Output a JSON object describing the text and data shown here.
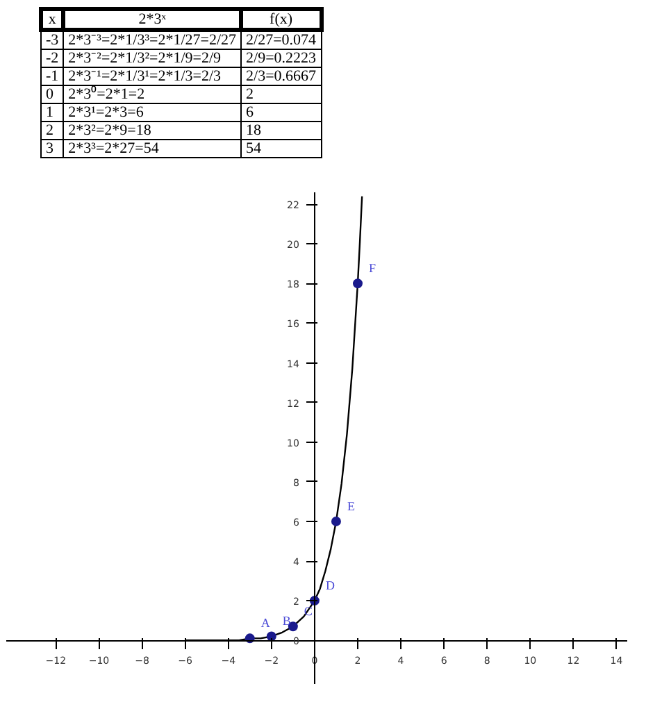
{
  "chart_data": {
    "type": "scatter",
    "xlim": [
      -14.3,
      14.5
    ],
    "ylim": [
      -2.2,
      22.6
    ],
    "xticks": [
      -12,
      -10,
      -8,
      -6,
      -4,
      -2,
      0,
      2,
      4,
      6,
      8,
      10,
      12,
      14
    ],
    "yticks": [
      0,
      2,
      4,
      6,
      8,
      10,
      12,
      14,
      16,
      18,
      20,
      22
    ],
    "grid": false,
    "series": [
      {
        "type": "line",
        "marker": "none",
        "color": "#000000",
        "x": [
          -6,
          -5,
          -4.5,
          -4,
          -3.5,
          -3,
          -2.5,
          -2,
          -1.5,
          -1,
          -0.5,
          0,
          0.25,
          0.5,
          0.75,
          1,
          1.25,
          1.5,
          1.75,
          2,
          2.1,
          2.2
        ],
        "values": [
          0,
          0,
          0,
          0,
          0,
          0.1,
          0.1,
          0.2,
          0.4,
          0.7,
          1.2,
          2,
          2.6,
          3.5,
          4.6,
          6,
          7.9,
          10.4,
          13.7,
          18,
          20.1,
          22.4
        ]
      },
      {
        "marker": "circle",
        "color": "#1a1a8c",
        "x": [
          -3,
          -2,
          -1,
          0,
          1,
          2
        ],
        "values": [
          0.1,
          0.2,
          0.7,
          2,
          6,
          18
        ]
      }
    ],
    "annotations": [
      {
        "text": "A",
        "x": -3,
        "y": 0.1
      },
      {
        "text": "B",
        "x": -2,
        "y": 0.2
      },
      {
        "text": "C",
        "x": -1,
        "y": 0.7
      },
      {
        "text": "D",
        "x": 0,
        "y": 2
      },
      {
        "text": "E",
        "x": 1,
        "y": 6
      },
      {
        "text": "F",
        "x": 2,
        "y": 18
      },
      "x",
      "2*3ˣ",
      "f(x)",
      "-3",
      "2*3⁻³=2*1/3³=2*1/27=2/27",
      "2/27=0.074",
      "-2",
      "2*3⁻²=2*1/3²=2*1/9=2/9",
      "2/9=0.2223",
      "-1",
      "2*3⁻¹=2*1/3¹=2*1/3=2/3",
      "2/3=0.6667",
      "0",
      "2*3⁰=2*1=2",
      "2",
      "1",
      "2*3¹=2*3=6",
      "6",
      "2",
      "2*3²=2*9=18",
      "18",
      "3",
      "2*3³=2*27=54",
      "54"
    ]
  }
}
